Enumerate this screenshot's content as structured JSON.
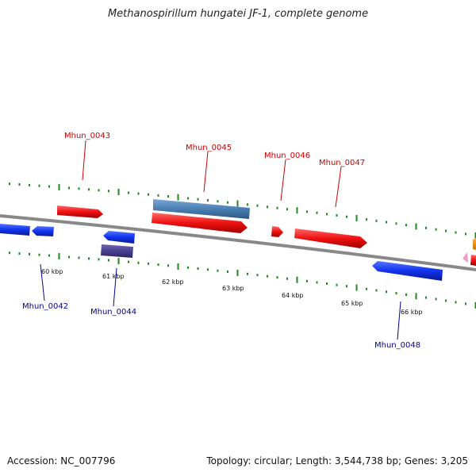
{
  "title": "Methanospirillum hungatei JF-1, complete genome",
  "footer": {
    "accession": "Accession: NC_007796",
    "summary": "Topology: circular; Length: 3,544,738 bp; Genes: 3,205"
  },
  "colors": {
    "forward_gene": "#ee1111",
    "reverse_gene": "#1133ee",
    "selected_gene": "#4a7fb3",
    "selected_reverse_gene": "#4a4090",
    "backbone": "#888888",
    "tick": "#1f8a1f",
    "forward_label": "#cc0000",
    "reverse_label": "#000099",
    "orange_feature": "#f08a00",
    "pink_feature": "#ee99cc"
  },
  "genes_forward": [
    {
      "name": "Mhun_0043",
      "id": "gene-mhun-0043"
    },
    {
      "name": "Mhun_0045",
      "id": "gene-mhun-0045"
    },
    {
      "name": "Mhun_0046",
      "id": "gene-mhun-0046"
    },
    {
      "name": "Mhun_0047",
      "id": "gene-mhun-0047"
    }
  ],
  "genes_reverse": [
    {
      "name": "Mhun_0042",
      "id": "gene-mhun-0042"
    },
    {
      "name": "Mhun_0044",
      "id": "gene-mhun-0044"
    },
    {
      "name": "Mhun_0048",
      "id": "gene-mhun-0048"
    }
  ],
  "kbp_labels": [
    "60 kbp",
    "61 kbp",
    "62 kbp",
    "63 kbp",
    "64 kbp",
    "65 kbp",
    "66 kbp"
  ]
}
